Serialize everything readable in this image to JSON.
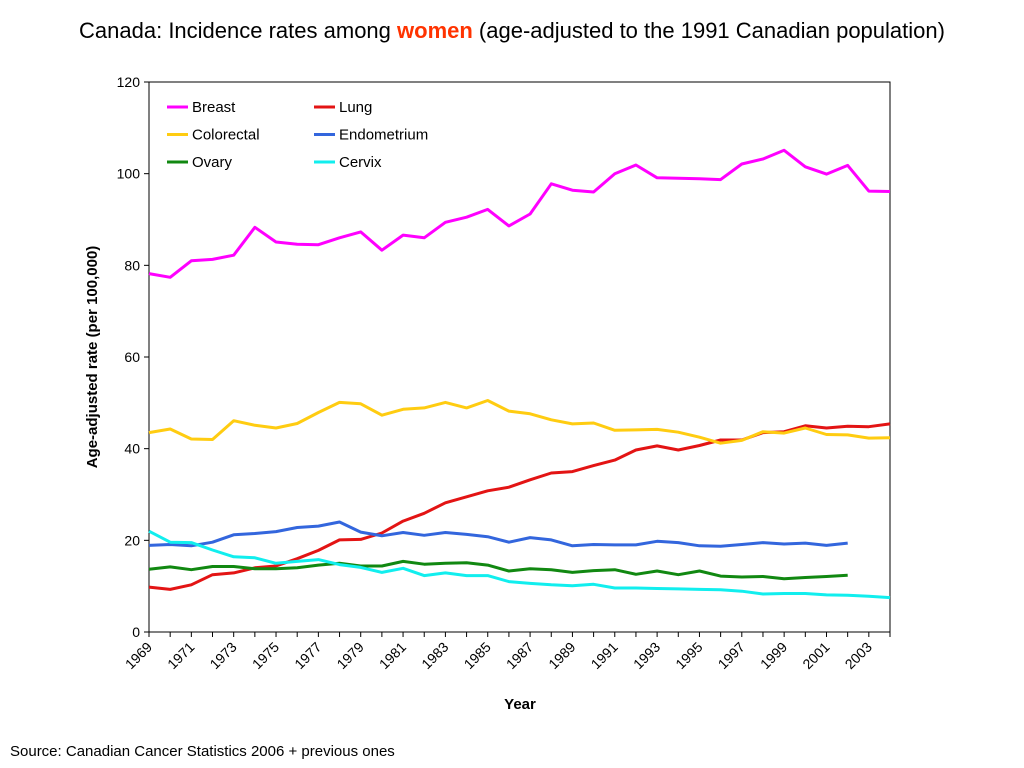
{
  "title": {
    "prefix": "Canada: Incidence rates among ",
    "highlight": "women",
    "suffix": " (age-adjusted to the 1991 Canadian population)"
  },
  "source": "Source: Canadian Cancer Statistics 2006 + previous ones",
  "colors": {
    "title_highlight": "#ff3300",
    "Breast": "#ff00ff",
    "Lung": "#e31414",
    "Colorectal": "#ffcc11",
    "Endometrium": "#3366dd",
    "Ovary": "#118811",
    "Cervix": "#11eeee"
  },
  "chart_data": {
    "type": "line",
    "xlabel": "Year",
    "ylabel": "Age-adjusted rate (per 100,000)",
    "ylim": [
      0,
      120
    ],
    "yticks": [
      0,
      20,
      40,
      60,
      80,
      100,
      120
    ],
    "xlim": [
      1969,
      2004
    ],
    "xtick_labels": [
      "1969",
      "1971",
      "1973",
      "1975",
      "1977",
      "1979",
      "1981",
      "1983",
      "1985",
      "1987",
      "1989",
      "1991",
      "1993",
      "1995",
      "1997",
      "1999",
      "2001",
      "2003"
    ],
    "grid": false,
    "legend_position": "top-left",
    "series": [
      {
        "name": "Breast",
        "start_year": 1969,
        "values": [
          78.2,
          77.4,
          81.0,
          81.3,
          82.2,
          88.3,
          85.1,
          84.6,
          84.5,
          86.0,
          87.3,
          83.3,
          86.6,
          86.0,
          89.4,
          90.5,
          92.2,
          88.6,
          91.2,
          97.8,
          96.4,
          96.0,
          100.0,
          101.9,
          99.1,
          99.0,
          98.9,
          98.7,
          102.1,
          103.2,
          105.1,
          101.5,
          99.9,
          101.8,
          96.2,
          96.1
        ]
      },
      {
        "name": "Lung",
        "start_year": 1969,
        "values": [
          9.8,
          9.3,
          10.3,
          12.5,
          12.9,
          14.0,
          14.4,
          16.0,
          17.8,
          20.1,
          20.2,
          21.6,
          24.2,
          25.9,
          28.2,
          29.5,
          30.8,
          31.6,
          33.2,
          34.7,
          35.0,
          36.3,
          37.5,
          39.7,
          40.6,
          39.7,
          40.7,
          41.9,
          41.9,
          43.5,
          43.7,
          45.0,
          44.5,
          44.9,
          44.8,
          45.4
        ]
      },
      {
        "name": "Colorectal",
        "start_year": 1969,
        "values": [
          43.5,
          44.3,
          42.1,
          42.0,
          46.1,
          45.1,
          44.5,
          45.5,
          47.9,
          50.1,
          49.8,
          47.3,
          48.6,
          48.9,
          50.1,
          48.9,
          50.5,
          48.2,
          47.6,
          46.3,
          45.4,
          45.6,
          44.0,
          44.1,
          44.2,
          43.6,
          42.5,
          41.2,
          41.8,
          43.7,
          43.4,
          44.5,
          43.1,
          43.0,
          42.3,
          42.4
        ]
      },
      {
        "name": "Endometrium",
        "start_year": 1969,
        "values": [
          18.9,
          19.1,
          18.8,
          19.6,
          21.2,
          21.5,
          21.9,
          22.8,
          23.1,
          24.0,
          21.8,
          21.0,
          21.7,
          21.1,
          21.7,
          21.3,
          20.8,
          19.6,
          20.6,
          20.1,
          18.8,
          19.1,
          19.0,
          19.0,
          19.8,
          19.5,
          18.8,
          18.7,
          19.1,
          19.5,
          19.2,
          19.4,
          18.9,
          19.4
        ]
      },
      {
        "name": "Ovary",
        "start_year": 1969,
        "values": [
          13.7,
          14.2,
          13.6,
          14.3,
          14.3,
          13.8,
          13.8,
          14.0,
          14.6,
          15.0,
          14.4,
          14.4,
          15.4,
          14.8,
          15.0,
          15.1,
          14.6,
          13.3,
          13.8,
          13.6,
          13.0,
          13.4,
          13.6,
          12.6,
          13.3,
          12.5,
          13.3,
          12.2,
          12.0,
          12.1,
          11.6,
          11.9,
          12.1,
          12.4
        ]
      },
      {
        "name": "Cervix",
        "start_year": 1969,
        "values": [
          22.0,
          19.6,
          19.5,
          17.9,
          16.4,
          16.2,
          15.0,
          15.4,
          15.8,
          14.7,
          14.1,
          13.0,
          13.9,
          12.3,
          12.9,
          12.3,
          12.3,
          11.0,
          10.6,
          10.3,
          10.1,
          10.4,
          9.6,
          9.6,
          9.5,
          9.4,
          9.3,
          9.2,
          8.9,
          8.3,
          8.4,
          8.4,
          8.1,
          8.0,
          7.8,
          7.5
        ]
      }
    ]
  }
}
